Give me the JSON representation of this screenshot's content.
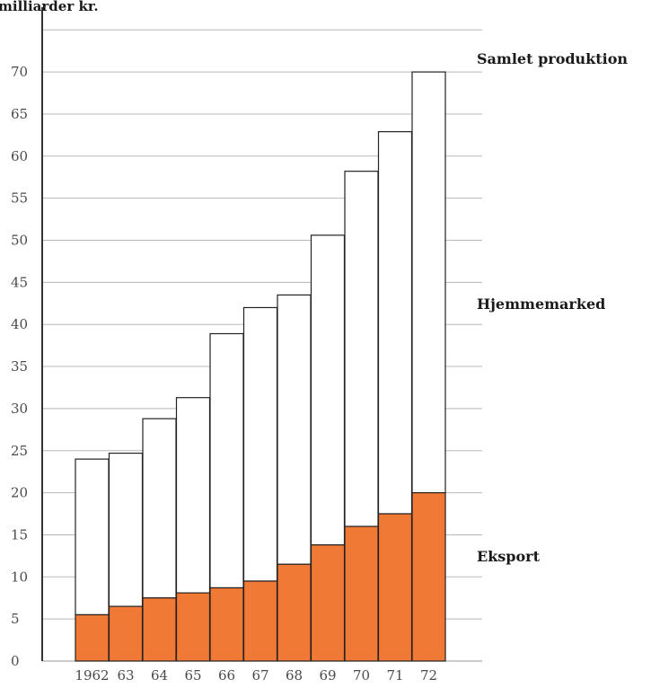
{
  "chart_data": {
    "type": "bar",
    "stacked": true,
    "ylabel": "milliarder kr.",
    "ylim": [
      0,
      75
    ],
    "yticks": [
      0,
      5,
      10,
      15,
      20,
      25,
      30,
      35,
      40,
      45,
      50,
      55,
      60,
      65,
      70
    ],
    "grid": true,
    "categories": [
      "1962",
      "63",
      "64",
      "65",
      "66",
      "67",
      "68",
      "69",
      "70",
      "71",
      "72"
    ],
    "series": [
      {
        "name": "Eksport",
        "color": "#f07a35",
        "values": [
          5.5,
          6.5,
          7.5,
          8.1,
          8.7,
          9.5,
          11.5,
          13.8,
          16.0,
          17.5,
          20.0
        ]
      },
      {
        "name": "Hjemmemarked",
        "color": "#ffffff",
        "values": [
          18.5,
          18.2,
          21.3,
          23.2,
          30.2,
          32.5,
          32.0,
          36.8,
          42.2,
          45.4,
          50.0
        ]
      }
    ],
    "totals_label": "Samlet produktion",
    "totals": [
      24.0,
      24.7,
      28.8,
      31.3,
      38.9,
      42.0,
      43.5,
      50.6,
      58.2,
      62.9,
      70.0
    ]
  }
}
